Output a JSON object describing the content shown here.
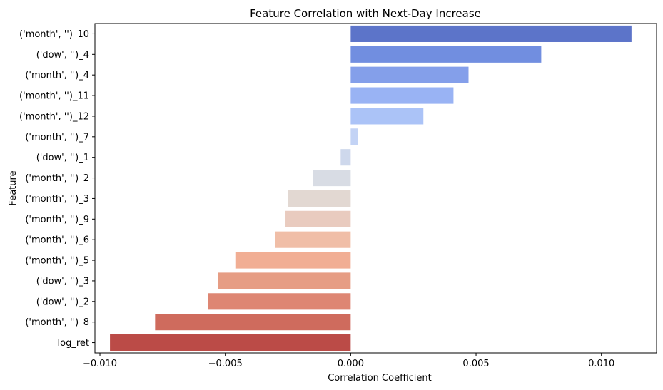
{
  "chart_data": {
    "type": "bar",
    "orientation": "horizontal",
    "title": "Feature Correlation with Next-Day Increase",
    "xlabel": "Correlation Coefficient",
    "ylabel": "Feature",
    "xlim": [
      -0.0102,
      0.0122
    ],
    "xticks": [
      -0.01,
      -0.005,
      0.0,
      0.005,
      0.01
    ],
    "xtick_labels": [
      "−0.010",
      "−0.005",
      "0.000",
      "0.005",
      "0.010"
    ],
    "grid": false,
    "categories": [
      "('month', '')_10",
      "('dow', '')_4",
      "('month', '')_4",
      "('month', '')_11",
      "('month', '')_12",
      "('month', '')_7",
      "('dow', '')_1",
      "('month', '')_2",
      "('month', '')_3",
      "('month', '')_9",
      "('month', '')_6",
      "('month', '')_5",
      "('dow', '')_3",
      "('dow', '')_2",
      "('month', '')_8",
      "log_ret"
    ],
    "values": [
      0.0112,
      0.0076,
      0.0047,
      0.0041,
      0.0029,
      0.0003,
      -0.0004,
      -0.0015,
      -0.0025,
      -0.0026,
      -0.003,
      -0.0046,
      -0.0053,
      -0.0057,
      -0.0078,
      -0.0096
    ],
    "colors": [
      "#5c74c9",
      "#718ee0",
      "#849fea",
      "#99b3f4",
      "#abc3f7",
      "#c3d3f5",
      "#ced8ec",
      "#d8dce4",
      "#e2d8d2",
      "#e9cbbf",
      "#f0bea7",
      "#f1ae94",
      "#e69d84",
      "#de8673",
      "#cf6b5d",
      "#bb4b47"
    ]
  }
}
